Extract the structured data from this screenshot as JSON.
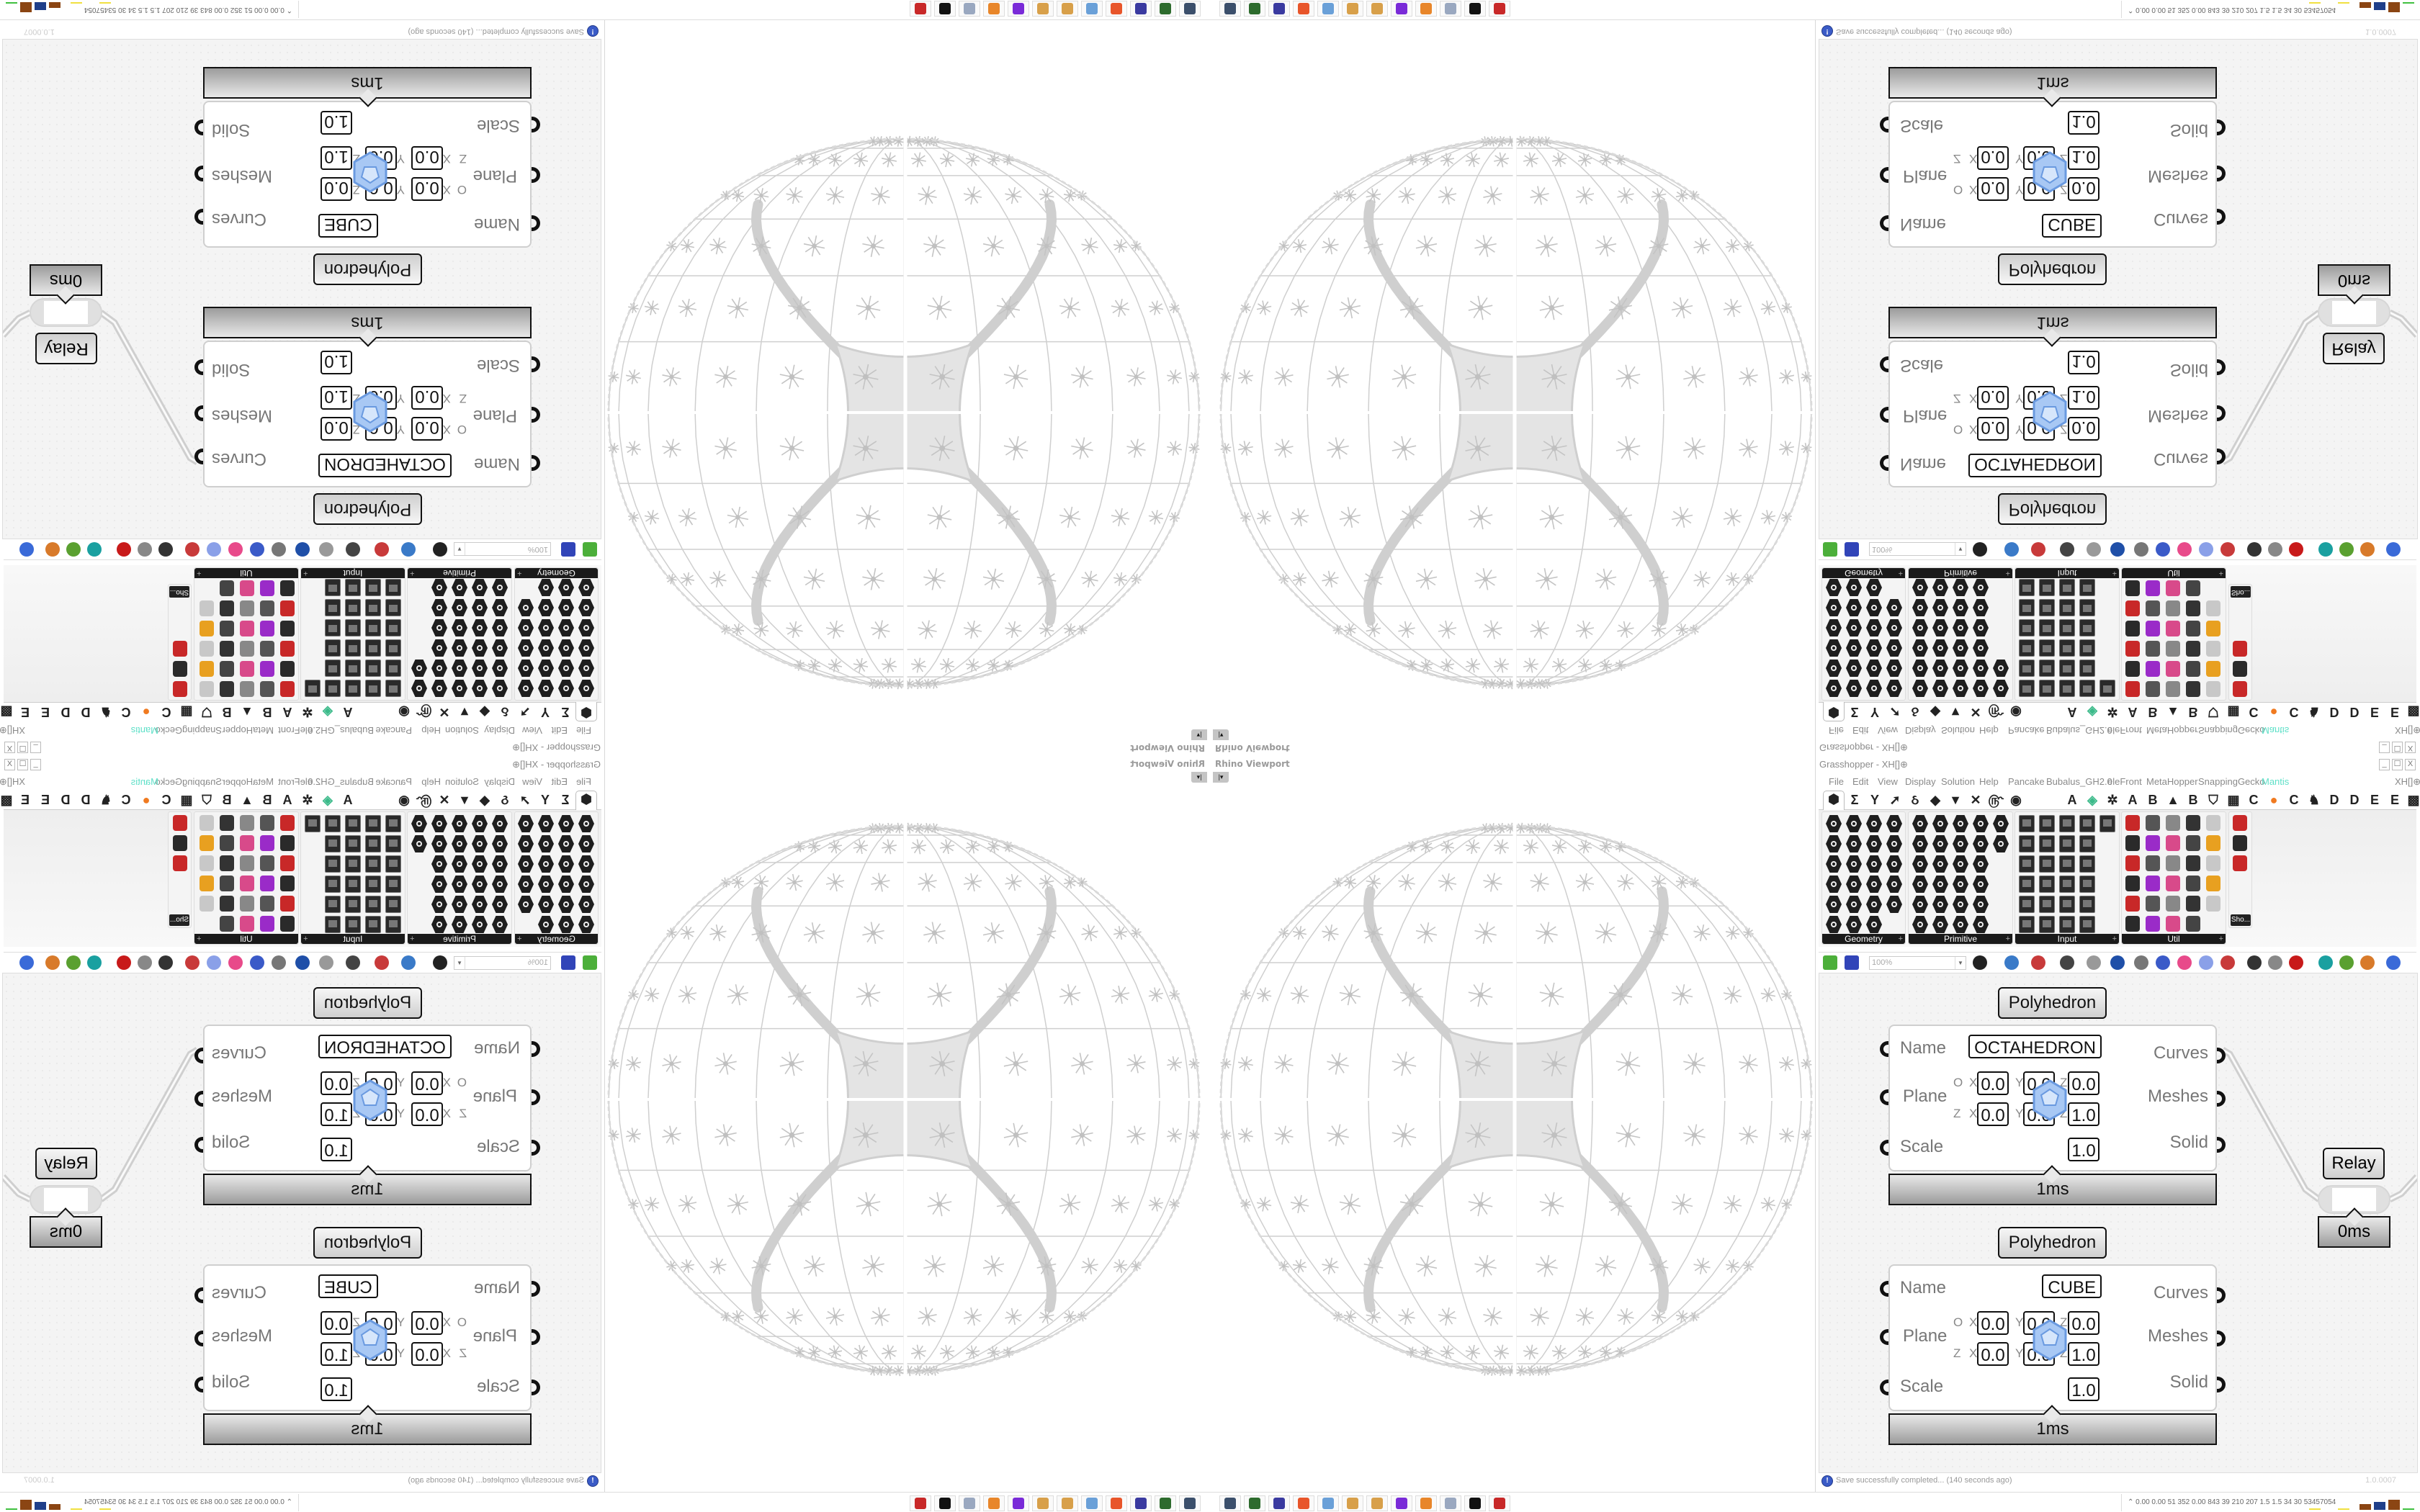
{
  "viewport": {
    "label": "Rhino Viewport",
    "dropdown_icon": "chevron-down-icon",
    "object_color": "#cfcfcf"
  },
  "grasshopper": {
    "title": "Grasshopper - XH[]⊕",
    "window_buttons": [
      "_",
      "☐",
      "X"
    ],
    "menu": [
      "File",
      "Edit",
      "View",
      "Display",
      "Solution",
      "Help",
      "Pancake",
      "Bubalus_GH2.0",
      "eleFront",
      "MetaHopper",
      "SnappingGecko",
      "Mantis"
    ],
    "menu_active": "Mantis",
    "menu_active_color": "#5fe0c8",
    "menu_right": "XH[]⊕",
    "tabs": [
      {
        "icon": "hexagon-icon",
        "glyph": "⬢"
      },
      {
        "icon": "sigma-icon",
        "glyph": "Σ"
      },
      {
        "icon": "branch-icon",
        "glyph": "Y"
      },
      {
        "icon": "arrow-icon",
        "glyph": "➚"
      },
      {
        "icon": "loop-icon",
        "glyph": "ઠ"
      },
      {
        "icon": "surface-icon",
        "glyph": "◆"
      },
      {
        "icon": "triangle-icon",
        "glyph": "▼"
      },
      {
        "icon": "cross-icon",
        "glyph": "✕"
      },
      {
        "icon": "snail-icon",
        "glyph": "௹"
      },
      {
        "icon": "eye-icon",
        "glyph": "◉"
      },
      {
        "icon": "letter-a-icon",
        "glyph": "A"
      },
      {
        "icon": "gem-icon",
        "glyph": "◈"
      },
      {
        "icon": "gear-icon",
        "glyph": "✲"
      },
      {
        "icon": "letter-a-icon",
        "glyph": "A"
      },
      {
        "icon": "letter-b-icon",
        "glyph": "B"
      },
      {
        "icon": "mountain-icon",
        "glyph": "▲"
      },
      {
        "icon": "letter-b-icon",
        "glyph": "B"
      },
      {
        "icon": "shield-icon",
        "glyph": "⛉"
      },
      {
        "icon": "grid-icon",
        "glyph": "▦"
      },
      {
        "icon": "letter-c-icon",
        "glyph": "C"
      },
      {
        "icon": "orange-circle-icon",
        "glyph": "●"
      },
      {
        "icon": "letter-c-icon",
        "glyph": "C"
      },
      {
        "icon": "rooster-icon",
        "glyph": "♞"
      },
      {
        "icon": "letter-d-icon",
        "glyph": "D"
      },
      {
        "icon": "letter-d-icon",
        "glyph": "D"
      },
      {
        "icon": "letter-e-icon",
        "glyph": "E"
      },
      {
        "icon": "letter-e-icon",
        "glyph": "E"
      },
      {
        "icon": "grid-icon",
        "glyph": "▩"
      }
    ],
    "groups": [
      {
        "label": "Geometry",
        "style": "hex",
        "rows": [
          4,
          4,
          4,
          4,
          4,
          3
        ]
      },
      {
        "label": "Primitive",
        "style": "hex",
        "rows": [
          5,
          5,
          4,
          4,
          4,
          4
        ]
      },
      {
        "label": "Input",
        "style": "sq",
        "rows": [
          5,
          4,
          4,
          4,
          4,
          4
        ]
      },
      {
        "label": "Util",
        "style": "col",
        "rows": [
          5,
          5,
          5,
          5,
          5,
          4
        ]
      },
      {
        "label": "Sho...",
        "style": "col",
        "rows": [
          1,
          1,
          1
        ]
      }
    ],
    "zoom": "100%",
    "status": {
      "message": "Save successfully completed... (140 seconds ago)",
      "version": "1.0.0007"
    },
    "components": [
      {
        "label": "Polyhedron",
        "inputs": [
          "Name",
          "Plane",
          "Scale"
        ],
        "outputs": [
          "Curves",
          "Meshes",
          "Solid"
        ],
        "name_value": "OCTAHEDRON",
        "origin_label": "O",
        "zaxis_label": "Z",
        "axes": [
          "X",
          "Y",
          "Z"
        ],
        "origin": [
          "0.0",
          "0.0",
          "0.0"
        ],
        "zaxis": [
          "0.0",
          "0.0",
          "1.0"
        ],
        "scale": "1.0",
        "time": "1ms"
      },
      {
        "label": "Polyhedron",
        "inputs": [
          "Name",
          "Plane",
          "Scale"
        ],
        "outputs": [
          "Curves",
          "Meshes",
          "Solid"
        ],
        "name_value": "CUBE",
        "origin_label": "O",
        "zaxis_label": "Z",
        "axes": [
          "X",
          "Y",
          "Z"
        ],
        "origin": [
          "0.0",
          "0.0",
          "0.0"
        ],
        "zaxis": [
          "0.0",
          "0.0",
          "1.0"
        ],
        "scale": "1.0",
        "time": "1ms"
      }
    ],
    "relay": {
      "label": "Relay",
      "time": "0ms"
    }
  },
  "taskbar": {
    "apps": [
      {
        "name": "remote-desktop-icon",
        "color": "#3b4f6b"
      },
      {
        "name": "terminal-icon",
        "color": "#2d6b2d"
      },
      {
        "name": "floppy-64-icon",
        "color": "#3a3aa0"
      },
      {
        "name": "firefox-icon",
        "color": "#e8552a"
      },
      {
        "name": "calculator-icon",
        "color": "#6aa0d8"
      },
      {
        "name": "paint-icon",
        "color": "#d8a04a"
      },
      {
        "name": "paint-icon",
        "color": "#d8a04a"
      },
      {
        "name": "chat-icon",
        "color": "#7a2bd8"
      },
      {
        "name": "blender-icon",
        "color": "#e8862a"
      },
      {
        "name": "notes-icon",
        "color": "#9aa8c0"
      },
      {
        "name": "rhino-icon",
        "color": "#111111"
      },
      {
        "name": "bug-icon",
        "color": "#c82828"
      }
    ],
    "stats": "0.00 0.00 51 352 0.00 843 39 210 207 1.5 1.5 34 30 53457054",
    "stats_icon": "chevron-up-icon",
    "bar_colors": [
      "#8b4513",
      "#1f3f8a",
      "#8b4513"
    ]
  }
}
